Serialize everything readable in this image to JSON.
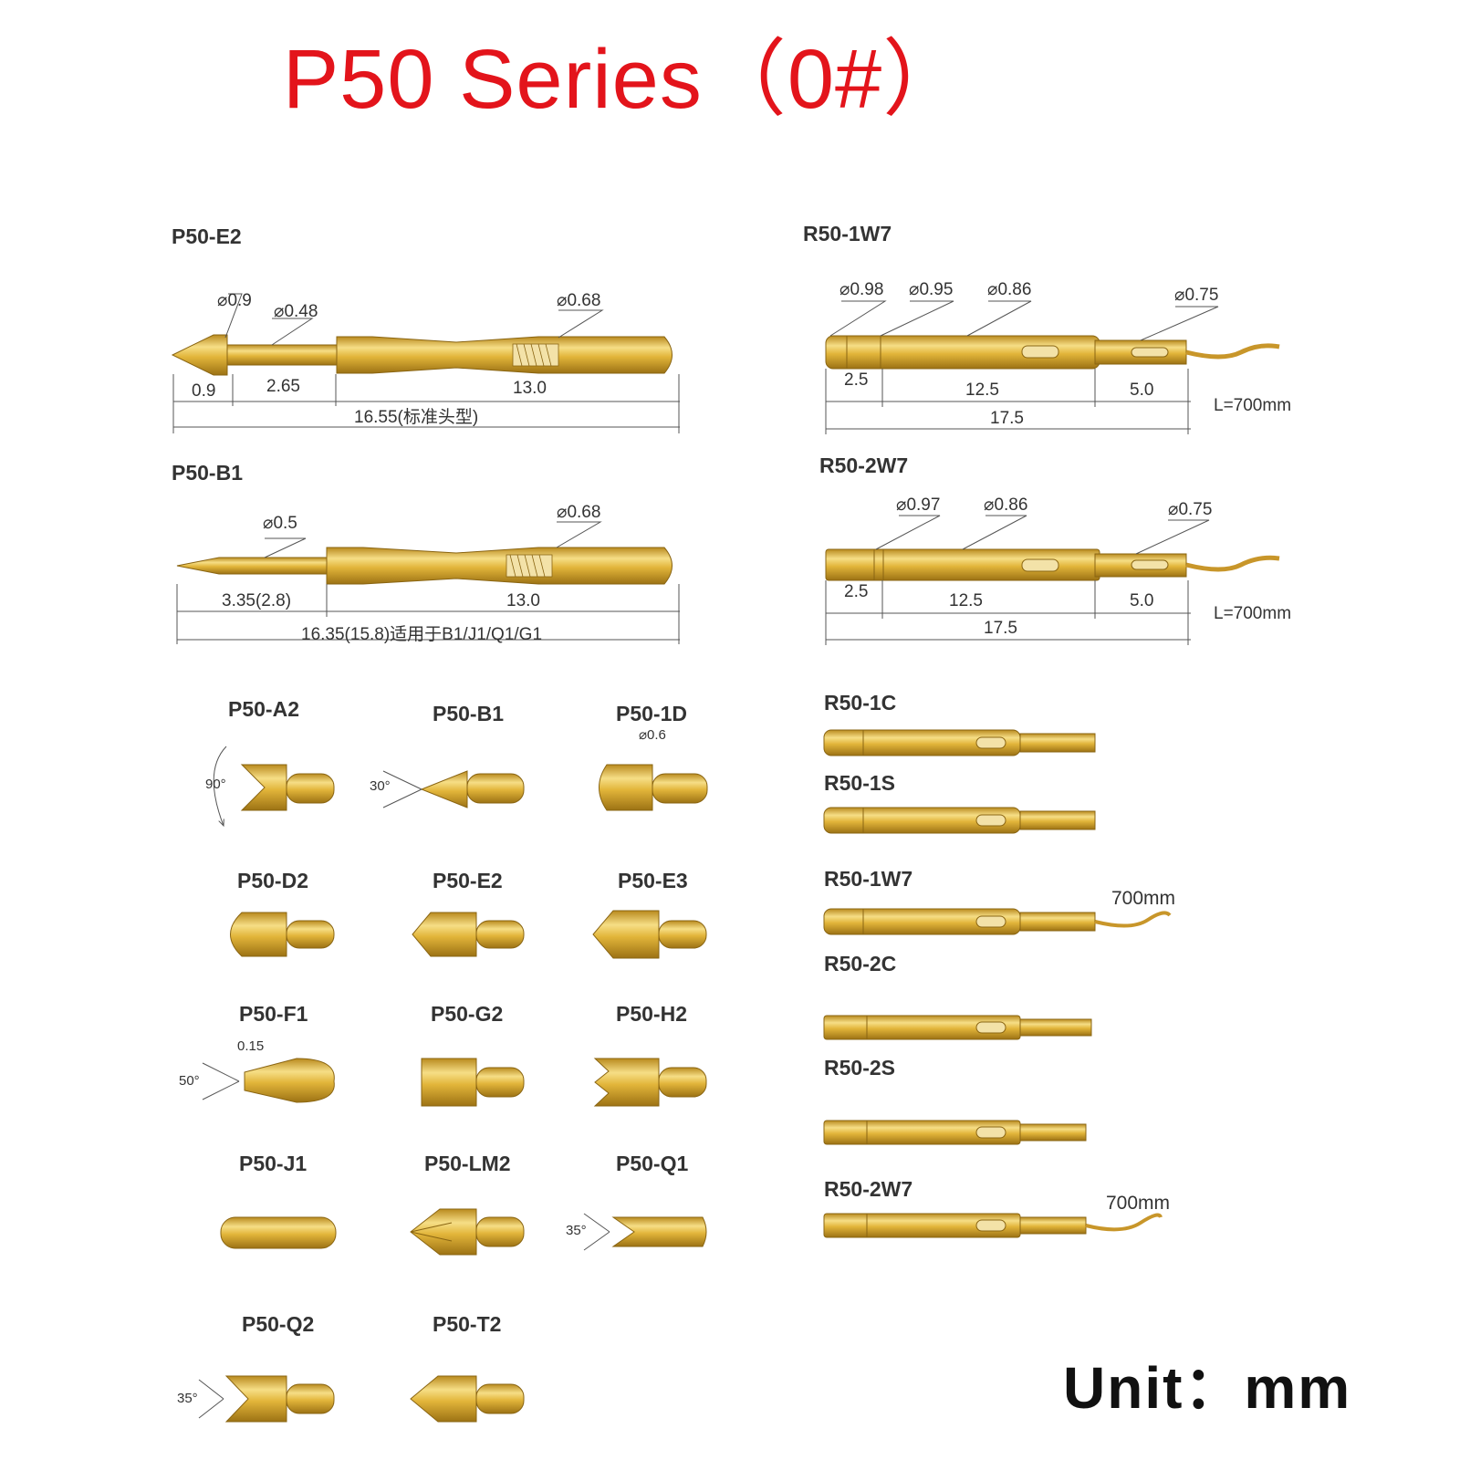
{
  "title": "P50 Series（0#）",
  "unit": "Unit：mm",
  "colors": {
    "title": "#e3141b",
    "gold": "#e2b53a",
    "gold_dark": "#a97d17",
    "gold_light": "#f6de86"
  },
  "big_probes": {
    "p50_e2": {
      "label": "P50-E2",
      "d1": "⌀0.9",
      "d2": "⌀0.48",
      "d3": "⌀0.68",
      "l1": "0.9",
      "l2": "2.65",
      "l3": "13.0",
      "total": "16.55(标准头型)"
    },
    "p50_b1": {
      "label": "P50-B1",
      "d1": "⌀0.5",
      "d2": "⌀0.68",
      "l1": "3.35(2.8)",
      "l2": "13.0",
      "total": "16.35(15.8)适用于B1/J1/Q1/G1"
    }
  },
  "receptacles": {
    "r50_1w7": {
      "label": "R50-1W7",
      "d1": "⌀0.98",
      "d2": "⌀0.95",
      "d3": "⌀0.86",
      "d4": "⌀0.75",
      "l1": "2.5",
      "l2": "12.5",
      "l3": "5.0",
      "total": "17.5",
      "wire": "L=700mm"
    },
    "r50_2w7": {
      "label": "R50-2W7",
      "d1": "⌀0.97",
      "d2": "⌀0.86",
      "d3": "⌀0.75",
      "l1": "2.5",
      "l2": "12.5",
      "l3": "5.0",
      "total": "17.5",
      "wire": "L=700mm"
    }
  },
  "tips": [
    {
      "label": "P50-A2",
      "note": "90°"
    },
    {
      "label": "P50-B1",
      "note": "30°"
    },
    {
      "label": "P50-1D",
      "note": "⌀0.6"
    },
    {
      "label": "P50-D2",
      "note": ""
    },
    {
      "label": "P50-E2",
      "note": ""
    },
    {
      "label": "P50-E3",
      "note": ""
    },
    {
      "label": "P50-F1",
      "note": "0.15",
      "note2": "50°"
    },
    {
      "label": "P50-G2",
      "note": ""
    },
    {
      "label": "P50-H2",
      "note": ""
    },
    {
      "label": "P50-J1",
      "note": ""
    },
    {
      "label": "P50-LM2",
      "note": ""
    },
    {
      "label": "P50-Q1",
      "note": "35°"
    },
    {
      "label": "P50-Q2",
      "note": "35°"
    },
    {
      "label": "P50-T2",
      "note": ""
    }
  ],
  "receptacle_list": [
    {
      "label": "R50-1C",
      "wire": ""
    },
    {
      "label": "R50-1S",
      "wire": ""
    },
    {
      "label": "R50-1W7",
      "wire": "700mm"
    },
    {
      "label": "R50-2C",
      "wire": ""
    },
    {
      "label": "R50-2S",
      "wire": ""
    },
    {
      "label": "R50-2W7",
      "wire": "700mm"
    }
  ]
}
